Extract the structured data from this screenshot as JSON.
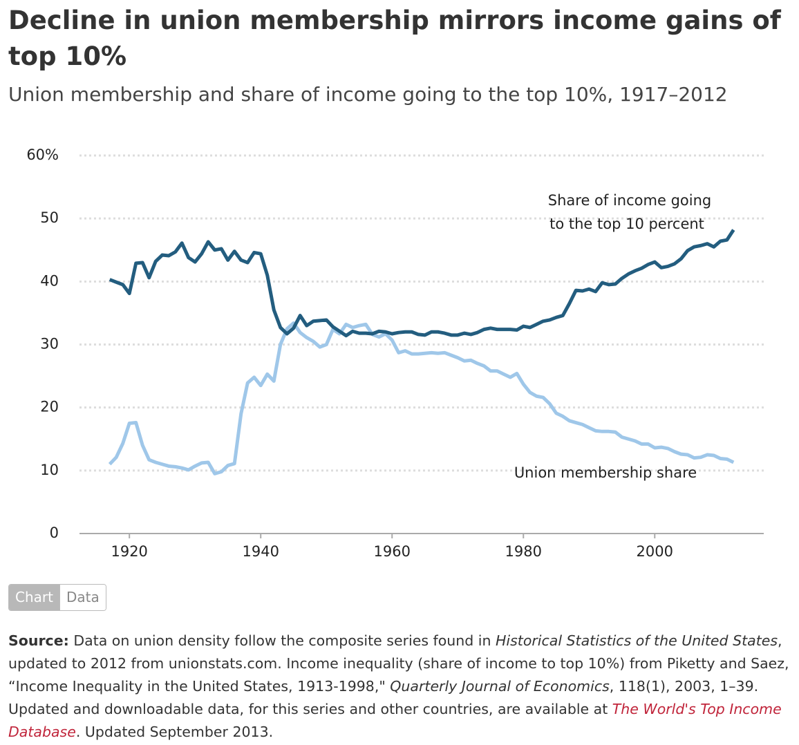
{
  "chart_data": {
    "type": "line",
    "title": "Decline in union membership mirrors income gains of top 10%",
    "subtitle": "Union membership and share of income going to the top 10%, 1917–2012",
    "x": [
      1917,
      1918,
      1919,
      1920,
      1921,
      1922,
      1923,
      1924,
      1925,
      1926,
      1927,
      1928,
      1929,
      1930,
      1931,
      1932,
      1933,
      1934,
      1935,
      1936,
      1937,
      1938,
      1939,
      1940,
      1941,
      1942,
      1943,
      1944,
      1945,
      1946,
      1947,
      1948,
      1949,
      1950,
      1951,
      1952,
      1953,
      1954,
      1955,
      1956,
      1957,
      1958,
      1959,
      1960,
      1961,
      1962,
      1963,
      1964,
      1965,
      1966,
      1967,
      1968,
      1969,
      1970,
      1971,
      1972,
      1973,
      1974,
      1975,
      1976,
      1977,
      1978,
      1979,
      1980,
      1981,
      1982,
      1983,
      1984,
      1985,
      1986,
      1987,
      1988,
      1989,
      1990,
      1991,
      1992,
      1993,
      1994,
      1995,
      1996,
      1997,
      1998,
      1999,
      2000,
      2001,
      2002,
      2003,
      2004,
      2005,
      2006,
      2007,
      2008,
      2009,
      2010,
      2011,
      2012
    ],
    "series": [
      {
        "name": "Share of income going to the top 10 percent",
        "color": "#235d7f",
        "values": [
          40.3,
          39.9,
          39.5,
          38.1,
          42.9,
          43.0,
          40.6,
          43.2,
          44.2,
          44.1,
          44.7,
          46.1,
          43.8,
          43.1,
          44.4,
          46.3,
          45.0,
          45.2,
          43.4,
          44.8,
          43.4,
          43.0,
          44.6,
          44.4,
          41.0,
          35.5,
          32.7,
          31.7,
          32.6,
          34.6,
          33.0,
          33.7,
          33.8,
          33.9,
          32.8,
          32.1,
          31.4,
          32.1,
          31.8,
          31.8,
          31.7,
          32.1,
          32.0,
          31.7,
          31.9,
          32.0,
          32.0,
          31.6,
          31.5,
          32.0,
          32.0,
          31.8,
          31.5,
          31.5,
          31.8,
          31.6,
          31.9,
          32.4,
          32.6,
          32.4,
          32.4,
          32.4,
          32.3,
          32.9,
          32.7,
          33.2,
          33.7,
          33.9,
          34.3,
          34.6,
          36.5,
          38.6,
          38.5,
          38.8,
          38.4,
          39.8,
          39.5,
          39.6,
          40.5,
          41.2,
          41.7,
          42.1,
          42.7,
          43.1,
          42.2,
          42.4,
          42.8,
          43.6,
          44.9,
          45.5,
          45.7,
          46.0,
          45.5,
          46.4,
          46.6,
          48.2
        ]
      },
      {
        "name": "Union membership share",
        "color": "#9fc7e9",
        "values": [
          11.0,
          12.1,
          14.3,
          17.5,
          17.6,
          14.0,
          11.7,
          11.3,
          11.0,
          10.7,
          10.6,
          10.4,
          10.1,
          10.7,
          11.2,
          11.3,
          9.5,
          9.8,
          10.8,
          11.1,
          19.0,
          23.9,
          24.8,
          23.5,
          25.3,
          24.2,
          30.0,
          32.5,
          33.4,
          31.9,
          31.1,
          30.5,
          29.6,
          30.0,
          32.4,
          31.7,
          33.2,
          32.7,
          33.0,
          33.2,
          31.6,
          31.2,
          31.7,
          30.7,
          28.7,
          29.0,
          28.5,
          28.5,
          28.6,
          28.7,
          28.6,
          28.7,
          28.3,
          27.9,
          27.4,
          27.5,
          27.0,
          26.6,
          25.8,
          25.8,
          25.3,
          24.8,
          25.4,
          23.7,
          22.4,
          21.8,
          21.6,
          20.6,
          19.1,
          18.6,
          17.9,
          17.6,
          17.3,
          16.8,
          16.3,
          16.2,
          16.2,
          16.1,
          15.3,
          15.0,
          14.7,
          14.2,
          14.2,
          13.6,
          13.7,
          13.5,
          13.0,
          12.6,
          12.5,
          12.0,
          12.1,
          12.5,
          12.4,
          11.9,
          11.8,
          11.3
        ]
      }
    ],
    "annotations": [
      "Share of income going",
      "to the top 10 percent",
      "Union membership share"
    ],
    "xlim": [
      1912.4,
      2016.6
    ],
    "xticks": [
      1920,
      1940,
      1960,
      1980,
      2000
    ],
    "ylim": [
      0,
      60
    ],
    "yticks": [
      0,
      10,
      20,
      30,
      40,
      {
        "value": 50,
        "label": "50"
      },
      {
        "value": 60,
        "label": "60%"
      }
    ],
    "grid": true
  },
  "tabs": [
    "Chart",
    "Data"
  ],
  "source": {
    "label": "Source:",
    "parts": [
      "Data on union density follow the composite series found in ",
      "Historical Statistics of the United States",
      ", updated to 2012 from unionstats.com. Income inequality (share of income to top 10%) from Piketty and Saez, “Income Inequality in the United States, 1913-1998,\" ",
      "Quarterly Journal of Economics",
      ", 118(1), 2003, 1–39. Updated and downloadable data, for this series and other countries, are available at ",
      "The World's Top Income Database",
      ". Updated September 2013."
    ]
  }
}
